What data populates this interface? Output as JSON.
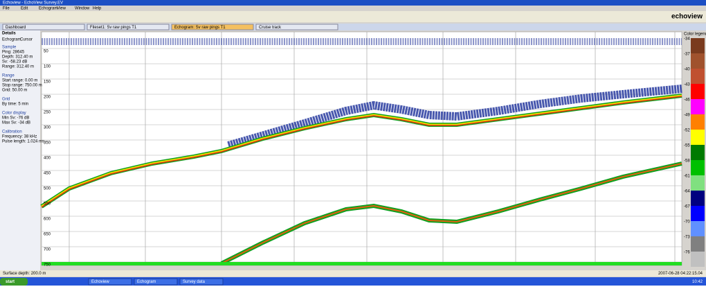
{
  "window": {
    "title": "Echoview - EchoView Survey.EV",
    "menu": [
      "File",
      "Edit",
      "Echogram",
      "View",
      "Window",
      "Help"
    ],
    "logo": "echoview"
  },
  "tabs": [
    "Dashboard",
    "Fileset1: Sv raw pings T1",
    "Echogram: Sv raw pings T1",
    "Cruise track"
  ],
  "panel": {
    "title": "Details",
    "tabs": [
      "Echogram",
      "Cursor"
    ],
    "sections": [
      {
        "heading": "Sample",
        "lines": [
          "Ping: 28645",
          "Depth: 312.40 m",
          "Sv: -58.23 dB",
          "Range: 312.40 m"
        ]
      },
      {
        "heading": "Range",
        "lines": [
          "Start range: 0.00 m",
          "Stop range: 750.00 m",
          "Grid: 50.00 m"
        ]
      },
      {
        "heading": "Grid",
        "lines": [
          "By time: 5 min"
        ]
      },
      {
        "heading": "Color display",
        "lines": [
          "Min Sv: -76 dB",
          "Max Sv: -34 dB"
        ]
      },
      {
        "heading": "Calibration",
        "lines": [
          "Frequency: 38 kHz",
          "Pulse length: 1.024 ms"
        ]
      }
    ]
  },
  "depth_labels": [
    "50",
    "100",
    "150",
    "200",
    "250",
    "300",
    "350",
    "400",
    "450",
    "500",
    "550",
    "600",
    "650",
    "700",
    "750"
  ],
  "legend": {
    "title": "Color legend",
    "labels": [
      "-34",
      "-37",
      "-40",
      "-43",
      "-46",
      "-49",
      "-52",
      "-55",
      "-58",
      "-61",
      "-64",
      "-67",
      "-70",
      "-73",
      "-76"
    ]
  },
  "status": {
    "left": "Surface depth: 200.0 m",
    "right": "2007-06-28 04:22:15.04"
  },
  "taskbar": {
    "start": "start",
    "items": [
      "Echoview",
      "Echogram",
      "Survey data"
    ],
    "clock": "10:42"
  }
}
